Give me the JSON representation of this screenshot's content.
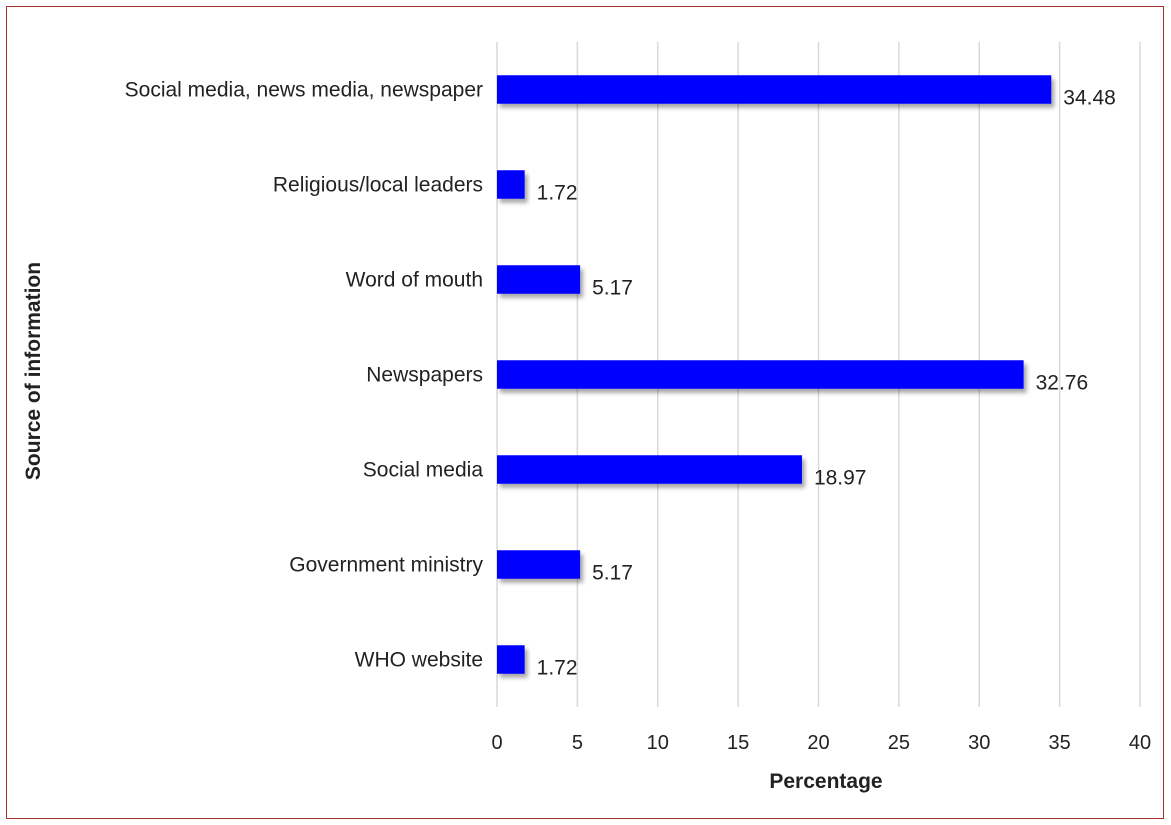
{
  "chart_data": {
    "type": "bar",
    "orientation": "horizontal",
    "categories": [
      "Social media, news media, newspaper",
      "Religious/local leaders",
      "Word of mouth",
      "Newspapers",
      "Social media",
      "Government ministry",
      "WHO website"
    ],
    "values": [
      34.48,
      1.72,
      5.17,
      32.76,
      18.97,
      5.17,
      1.72
    ],
    "data_labels": [
      "34.48",
      "1.72",
      "5.17",
      "32.76",
      "18.97",
      "5.17",
      "1.72"
    ],
    "xlabel": "Percentage",
    "ylabel": "Source of information",
    "xlim": [
      0,
      40
    ],
    "x_ticks": [
      "0",
      "5",
      "10",
      "15",
      "20",
      "25",
      "30",
      "35",
      "40"
    ],
    "grid": "vertical",
    "legend": "none",
    "bar_color": "#0000ff",
    "frame_color": "#a0322a"
  }
}
